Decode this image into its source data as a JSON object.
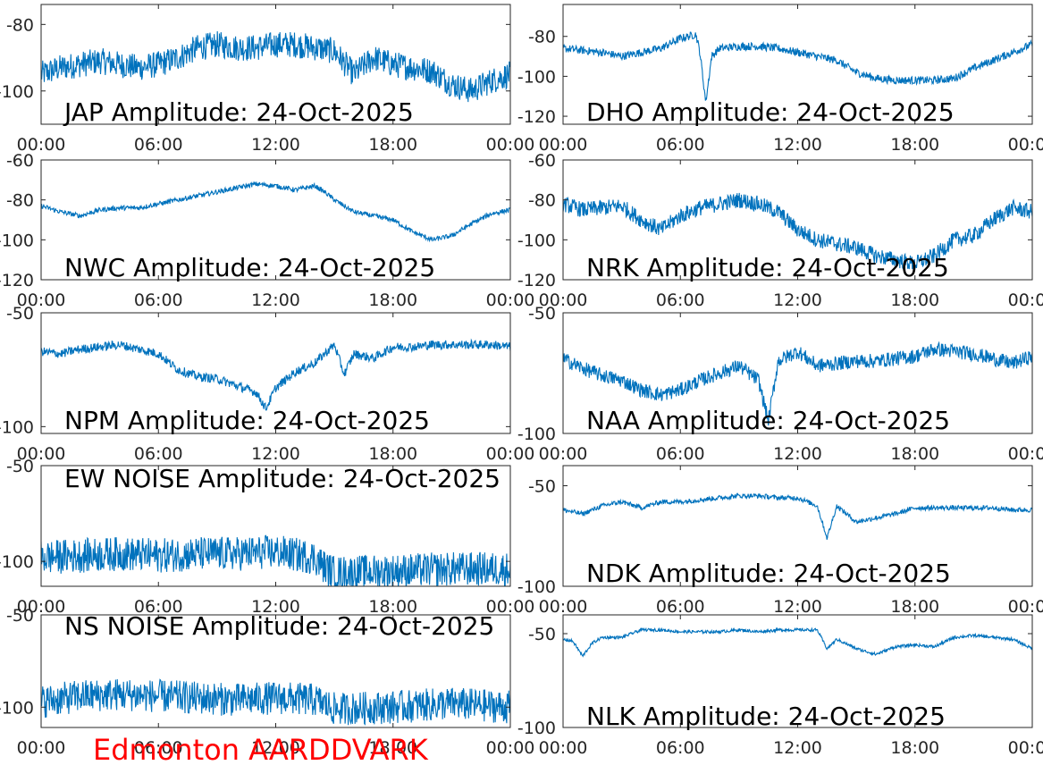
{
  "footer": {
    "station": "Edmonton AARDDVARK"
  },
  "colors": {
    "line": "#0072bd",
    "axis": "#262626",
    "footer": "#ff0000"
  },
  "x_ticks": [
    "00:00",
    "06:00",
    "12:00",
    "18:00",
    "00:00"
  ],
  "chart_data": [
    {
      "type": "line",
      "title": "JAP Amplitude: 24-Oct-2025",
      "xlabel": "",
      "ylabel": "",
      "x_hours": [
        0,
        24
      ],
      "ylim": [
        -110,
        -74
      ],
      "yticks": [
        "-80",
        "-100"
      ],
      "ytick_values": [
        -80,
        -100
      ],
      "grid": false,
      "series": [
        {
          "x": [
            0,
            1,
            2,
            3,
            4,
            5,
            6,
            7,
            8,
            9,
            10,
            11,
            12,
            13,
            14,
            15,
            16,
            17,
            18,
            19,
            20,
            21,
            22,
            23,
            24
          ],
          "y": [
            -95,
            -93,
            -92,
            -91,
            -92,
            -93,
            -92,
            -90,
            -87,
            -86,
            -87,
            -87,
            -86,
            -86,
            -87,
            -88,
            -95,
            -90,
            -92,
            -93,
            -94,
            -98,
            -100,
            -97,
            -95
          ],
          "noise": 4
        }
      ]
    },
    {
      "type": "line",
      "title": "DHO Amplitude: 24-Oct-2025",
      "xlabel": "",
      "ylabel": "",
      "x_hours": [
        0,
        24
      ],
      "ylim": [
        -124,
        -64
      ],
      "yticks": [
        "-80",
        "-100",
        "-120"
      ],
      "ytick_values": [
        -80,
        -100,
        -120
      ],
      "grid": false,
      "series": [
        {
          "x": [
            0,
            1,
            2,
            3,
            4,
            5,
            6,
            6.8,
            7,
            7.3,
            7.6,
            8,
            9,
            10,
            11,
            12,
            13,
            14,
            15,
            16,
            17,
            18,
            19,
            20,
            21,
            22,
            23,
            24
          ],
          "y": [
            -86,
            -87,
            -88,
            -90,
            -88,
            -86,
            -81,
            -79,
            -88,
            -113,
            -90,
            -86,
            -85,
            -85,
            -86,
            -88,
            -90,
            -92,
            -98,
            -101,
            -102,
            -102,
            -102,
            -101,
            -96,
            -92,
            -88,
            -84
          ],
          "noise": 2
        }
      ]
    },
    {
      "type": "line",
      "title": "NWC Amplitude: 24-Oct-2025",
      "xlabel": "",
      "ylabel": "",
      "x_hours": [
        0,
        24
      ],
      "ylim": [
        -120,
        -60
      ],
      "yticks": [
        "-60",
        "-80",
        "-100",
        "-120"
      ],
      "ytick_values": [
        -60,
        -80,
        -100,
        -120
      ],
      "grid": false,
      "series": [
        {
          "x": [
            0,
            1,
            2,
            3,
            4,
            5,
            6,
            7,
            8,
            9,
            10,
            11,
            12,
            13,
            14,
            14.5,
            15,
            16,
            17,
            18,
            19,
            20,
            21,
            22,
            23,
            24
          ],
          "y": [
            -83,
            -86,
            -88,
            -85,
            -84,
            -84,
            -82,
            -80,
            -78,
            -76,
            -74,
            -72,
            -73,
            -75,
            -73,
            -76,
            -80,
            -86,
            -88,
            -90,
            -96,
            -100,
            -98,
            -92,
            -87,
            -85
          ],
          "noise": 1.2
        }
      ]
    },
    {
      "type": "line",
      "title": "NRK Amplitude: 24-Oct-2025",
      "xlabel": "",
      "ylabel": "",
      "x_hours": [
        0,
        24
      ],
      "ylim": [
        -120,
        -60
      ],
      "yticks": [
        "-60",
        "-80",
        "-100",
        "-120"
      ],
      "ytick_values": [
        -60,
        -80,
        -100,
        -120
      ],
      "grid": false,
      "series": [
        {
          "x": [
            0,
            1,
            2,
            3,
            4,
            5,
            6,
            7,
            8,
            9,
            10,
            11,
            12,
            13,
            14,
            15,
            16,
            17,
            18,
            19,
            20,
            21,
            22,
            23,
            24
          ],
          "y": [
            -82,
            -85,
            -84,
            -83,
            -90,
            -95,
            -88,
            -84,
            -82,
            -80,
            -82,
            -86,
            -95,
            -100,
            -102,
            -104,
            -108,
            -110,
            -112,
            -108,
            -100,
            -98,
            -90,
            -84,
            -86
          ],
          "noise": 4
        }
      ]
    },
    {
      "type": "line",
      "title": "NPM Amplitude: 24-Oct-2025",
      "xlabel": "",
      "ylabel": "",
      "x_hours": [
        0,
        24
      ],
      "ylim": [
        -103,
        -50
      ],
      "yticks": [
        "-50",
        "-100"
      ],
      "ytick_values": [
        -50,
        -100
      ],
      "grid": false,
      "series": [
        {
          "x": [
            0,
            1,
            2,
            3,
            4,
            5,
            6,
            7,
            8,
            9,
            10,
            11,
            11.5,
            12,
            13,
            14,
            15,
            15.5,
            16,
            17,
            18,
            19,
            20,
            21,
            22,
            23,
            24
          ],
          "y": [
            -67,
            -68,
            -66,
            -65,
            -64,
            -66,
            -68,
            -75,
            -78,
            -79,
            -82,
            -85,
            -92,
            -83,
            -76,
            -72,
            -64,
            -77,
            -68,
            -70,
            -65,
            -65,
            -64,
            -64,
            -64,
            -64,
            -65
          ],
          "noise": 2
        }
      ]
    },
    {
      "type": "line",
      "title": "NAA Amplitude: 24-Oct-2025",
      "xlabel": "",
      "ylabel": "",
      "x_hours": [
        0,
        24
      ],
      "ylim": [
        -100,
        -50
      ],
      "yticks": [
        "-50",
        "-100"
      ],
      "ytick_values": [
        -50,
        -100
      ],
      "grid": false,
      "series": [
        {
          "x": [
            0,
            1,
            2,
            3,
            4,
            5,
            6,
            7,
            8,
            9,
            10,
            10.5,
            11,
            12,
            13,
            14,
            15,
            16,
            17,
            18,
            19,
            20,
            21,
            22,
            23,
            24
          ],
          "y": [
            -69,
            -73,
            -76,
            -78,
            -82,
            -84,
            -82,
            -78,
            -75,
            -72,
            -78,
            -95,
            -70,
            -66,
            -72,
            -71,
            -70,
            -70,
            -69,
            -68,
            -65,
            -66,
            -67,
            -69,
            -71,
            -68
          ],
          "noise": 3
        }
      ]
    },
    {
      "type": "line",
      "title": "EW NOISE Amplitude: 24-Oct-2025",
      "xlabel": "",
      "ylabel": "",
      "x_hours": [
        0,
        24
      ],
      "ylim": [
        -113,
        -50
      ],
      "yticks": [
        "-50",
        "-100"
      ],
      "ytick_values": [
        -50,
        -100
      ],
      "grid": false,
      "series": [
        {
          "x": [
            0,
            2,
            4,
            6,
            8,
            10,
            12,
            14,
            14.5,
            15,
            18,
            21,
            24
          ],
          "y": [
            -98,
            -97,
            -96,
            -97,
            -96,
            -96,
            -95,
            -98,
            -103,
            -106,
            -105,
            -104,
            -104
          ],
          "noise": 9
        }
      ]
    },
    {
      "type": "line",
      "title": "NDK Amplitude: 24-Oct-2025",
      "xlabel": "",
      "ylabel": "",
      "x_hours": [
        0,
        24
      ],
      "ylim": [
        -100,
        -40
      ],
      "yticks": [
        "-50",
        "-100"
      ],
      "ytick_values": [
        -50,
        -100
      ],
      "grid": false,
      "series": [
        {
          "x": [
            0,
            1,
            2,
            3,
            4,
            5,
            6,
            7,
            8,
            9,
            10,
            11,
            12,
            13,
            13.5,
            14,
            15,
            16,
            17,
            18,
            19,
            20,
            21,
            22,
            23,
            24
          ],
          "y": [
            -62,
            -64,
            -60,
            -58,
            -61,
            -58,
            -58,
            -57,
            -56,
            -55,
            -55,
            -56,
            -56,
            -60,
            -76,
            -60,
            -68,
            -66,
            -64,
            -61,
            -61,
            -61,
            -61,
            -61,
            -62,
            -62
          ],
          "noise": 1.2
        }
      ]
    },
    {
      "type": "line",
      "title": "NS NOISE Amplitude: 24-Oct-2025",
      "xlabel": "",
      "ylabel": "",
      "x_hours": [
        0,
        24
      ],
      "ylim": [
        -111,
        -50
      ],
      "yticks": [
        "-50",
        "-100"
      ],
      "ytick_values": [
        -50,
        -100
      ],
      "grid": false,
      "series": [
        {
          "x": [
            0,
            2,
            4,
            6,
            8,
            10,
            12,
            14,
            15,
            18,
            21,
            24
          ],
          "y": [
            -97,
            -94,
            -93,
            -94,
            -95,
            -96,
            -95,
            -96,
            -101,
            -100,
            -98,
            -100
          ],
          "noise": 9
        }
      ]
    },
    {
      "type": "line",
      "title": "NLK Amplitude: 24-Oct-2025",
      "xlabel": "",
      "ylabel": "",
      "x_hours": [
        0,
        24
      ],
      "ylim": [
        -100,
        -40
      ],
      "yticks": [
        "-50",
        "-100"
      ],
      "ytick_values": [
        -50,
        -100
      ],
      "grid": false,
      "series": [
        {
          "x": [
            0,
            0.5,
            1,
            1.5,
            2,
            3,
            4,
            5,
            6,
            7,
            8,
            9,
            10,
            11,
            12,
            13,
            13.5,
            14,
            15,
            16,
            17,
            18,
            19,
            20,
            21,
            22,
            23,
            24
          ],
          "y": [
            -53,
            -54,
            -62,
            -55,
            -52,
            -52,
            -48,
            -48,
            -49,
            -49,
            -49,
            -48,
            -49,
            -48,
            -48,
            -48,
            -58,
            -53,
            -58,
            -61,
            -57,
            -56,
            -57,
            -52,
            -51,
            -52,
            -53,
            -58
          ],
          "noise": 0.8
        }
      ]
    }
  ]
}
